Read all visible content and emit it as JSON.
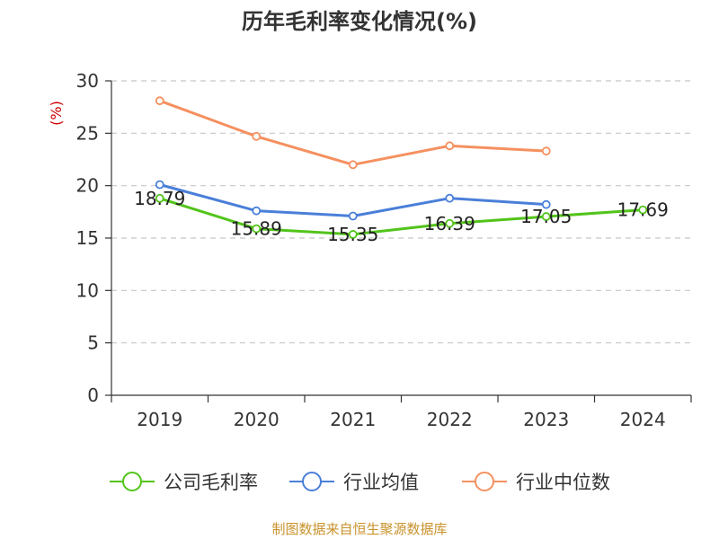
{
  "chart_data": {
    "type": "line",
    "title": "历年毛利率变化情况(%)",
    "ylabel": "(%)",
    "xlabel": "",
    "categories": [
      "2019",
      "2020",
      "2021",
      "2022",
      "2023",
      "2024"
    ],
    "ylim": [
      0,
      30
    ],
    "yticks": [
      "0",
      "5",
      "10",
      "15",
      "20",
      "25",
      "30"
    ],
    "grid": true,
    "legend_placement": "bottom",
    "series": [
      {
        "name": "公司毛利率",
        "color": "#52c41a",
        "values": [
          18.79,
          15.89,
          15.35,
          16.39,
          17.05,
          17.69
        ],
        "labels": [
          "18.79",
          "15.89",
          "15.35",
          "16.39",
          "17.05",
          "17.69"
        ]
      },
      {
        "name": "行业均值",
        "color": "#4a7fd9",
        "values": [
          20.1,
          17.6,
          17.1,
          18.8,
          18.2,
          null
        ]
      },
      {
        "name": "行业中位数",
        "color": "#f5905f",
        "values": [
          28.1,
          24.7,
          22.0,
          23.8,
          23.3,
          null
        ]
      }
    ]
  },
  "footer": {
    "text": "制图数据来自恒生聚源数据库",
    "color": "#c8922b"
  },
  "axis_label_color": "#cc0000"
}
